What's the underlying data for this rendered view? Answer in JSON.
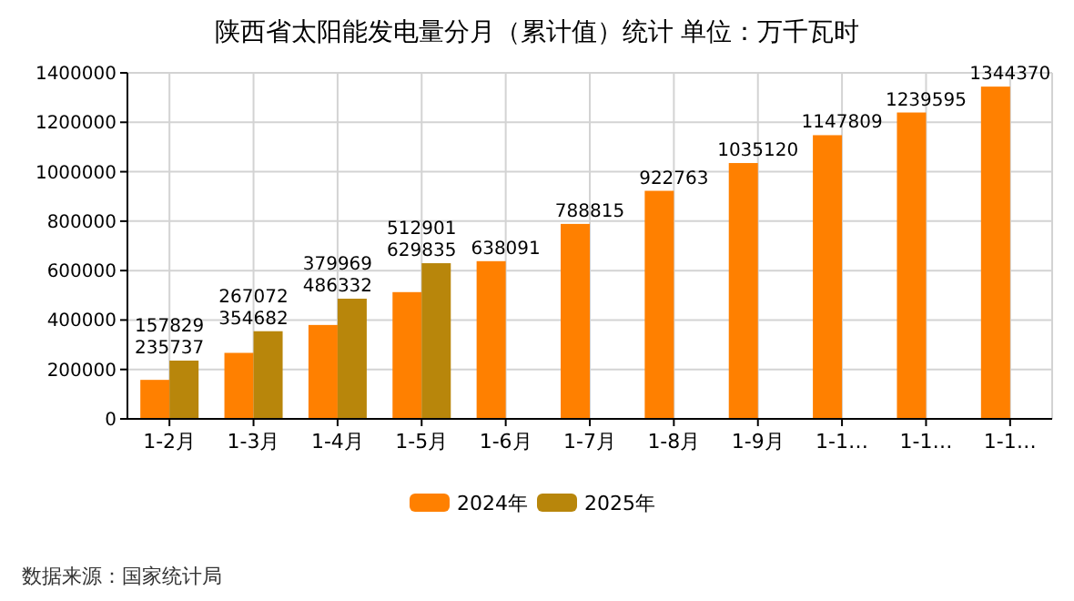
{
  "chart_data": {
    "type": "bar",
    "title": "陕西省太阳能发电量分月（累计值）统计  单位：万千瓦时",
    "categories": [
      "1-2月",
      "1-3月",
      "1-4月",
      "1-5月",
      "1-6月",
      "1-7月",
      "1-8月",
      "1-9月",
      "1-1…",
      "1-1…",
      "1-1…"
    ],
    "series": [
      {
        "name": "2024年",
        "color": "#ff8000",
        "values": [
          157829,
          267072,
          379969,
          512901,
          638091,
          788815,
          922763,
          1035120,
          1147809,
          1239595,
          1344370
        ]
      },
      {
        "name": "2025年",
        "color": "#b8860b",
        "values": [
          235737,
          354682,
          486332,
          629835,
          null,
          null,
          null,
          null,
          null,
          null,
          null
        ]
      }
    ],
    "ylim": [
      0,
      1400000
    ],
    "yticks": [
      0,
      200000,
      400000,
      600000,
      800000,
      1000000,
      1200000,
      1400000
    ],
    "grid": true,
    "legend": "bottom",
    "data_labels": true,
    "annotations": [
      "数据来源：国家统计局"
    ]
  }
}
